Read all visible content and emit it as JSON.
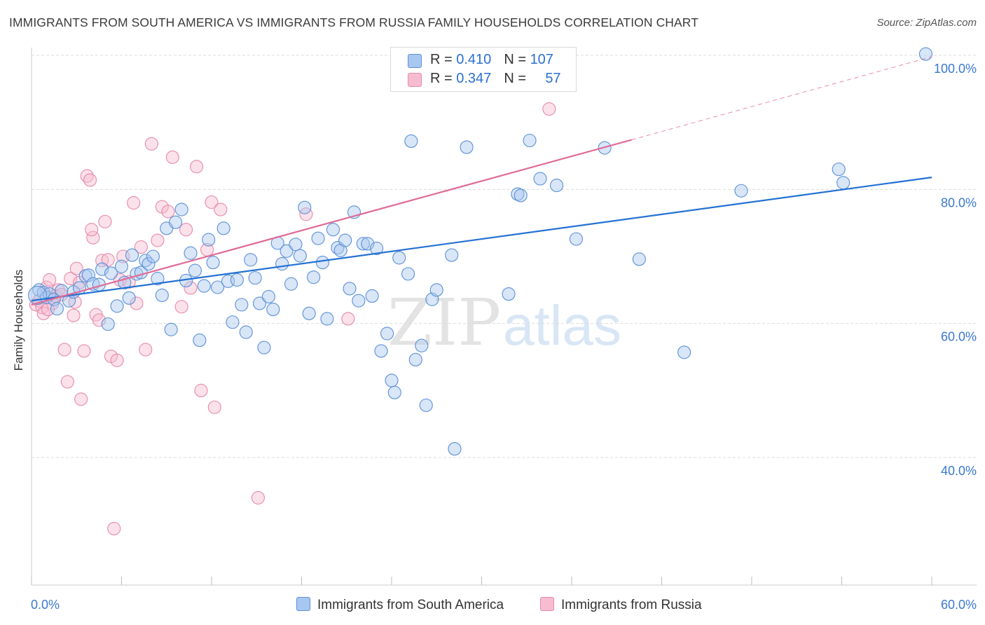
{
  "title": "IMMIGRANTS FROM SOUTH AMERICA VS IMMIGRANTS FROM RUSSIA FAMILY HOUSEHOLDS CORRELATION CHART",
  "source": "Source: ZipAtlas.com",
  "legend_top": [
    {
      "r_label": "R = ",
      "r_value": "0.410",
      "n_label": "N = ",
      "n_value": "107"
    },
    {
      "r_label": "R = ",
      "r_value": "0.347",
      "n_label": "N = ",
      "n_value": "57"
    }
  ],
  "colors": {
    "blue_fill": "#a8c7f0",
    "blue_stroke": "#5b8fd6",
    "blue_line": "#2471d3",
    "pink_fill": "#f7bcd0",
    "pink_stroke": "#e58aa8",
    "pink_line": "#e06b96",
    "axis_text": "#3a78d0",
    "grid": "#dcdcdc"
  },
  "chart_data": {
    "type": "scatter",
    "title": "IMMIGRANTS FROM SOUTH AMERICA VS IMMIGRANTS FROM RUSSIA FAMILY HOUSEHOLDS CORRELATION CHART",
    "xlabel": "",
    "ylabel": "Family Households",
    "xlim": [
      0,
      60
    ],
    "ylim": [
      20,
      102
    ],
    "x_tick_labels": [
      "0.0%",
      "60.0%"
    ],
    "y_tick_labels": [
      "40.0%",
      "60.0%",
      "80.0%",
      "100.0%"
    ],
    "y_ticks": [
      40,
      60,
      80,
      100
    ],
    "grid": true,
    "legend_position": "bottom",
    "series": [
      {
        "name": "Immigrants from South America",
        "r": 0.41,
        "n": 107,
        "trend": {
          "x": [
            0,
            60
          ],
          "y": [
            63.4,
            81.8
          ]
        },
        "points": [
          [
            0.5,
            65.0
          ],
          [
            0.8,
            64.6
          ],
          [
            1.0,
            63.9
          ],
          [
            1.2,
            64.4
          ],
          [
            1.5,
            63.6
          ],
          [
            1.7,
            62.2
          ],
          [
            2.0,
            64.9
          ],
          [
            2.5,
            63.4
          ],
          [
            2.8,
            64.7
          ],
          [
            3.2,
            65.3
          ],
          [
            3.6,
            67.1
          ],
          [
            3.8,
            67.2
          ],
          [
            4.1,
            65.9
          ],
          [
            4.5,
            65.8
          ],
          [
            4.7,
            68.1
          ],
          [
            5.1,
            59.9
          ],
          [
            5.3,
            67.5
          ],
          [
            5.7,
            62.6
          ],
          [
            6.0,
            68.5
          ],
          [
            6.2,
            66.1
          ],
          [
            6.5,
            63.8
          ],
          [
            6.7,
            70.2
          ],
          [
            7.0,
            67.4
          ],
          [
            7.3,
            67.6
          ],
          [
            7.6,
            69.4
          ],
          [
            7.8,
            68.9
          ],
          [
            8.1,
            70.0
          ],
          [
            8.4,
            66.7
          ],
          [
            8.7,
            64.2
          ],
          [
            9.0,
            74.2
          ],
          [
            9.3,
            59.1
          ],
          [
            9.6,
            75.1
          ],
          [
            10.0,
            77.0
          ],
          [
            10.3,
            66.4
          ],
          [
            10.6,
            70.5
          ],
          [
            10.9,
            67.9
          ],
          [
            11.2,
            57.5
          ],
          [
            11.5,
            65.6
          ],
          [
            11.8,
            72.5
          ],
          [
            12.1,
            69.1
          ],
          [
            12.4,
            65.4
          ],
          [
            12.8,
            74.2
          ],
          [
            13.1,
            66.3
          ],
          [
            13.4,
            60.2
          ],
          [
            13.7,
            66.5
          ],
          [
            14.0,
            62.8
          ],
          [
            14.3,
            58.7
          ],
          [
            14.6,
            69.5
          ],
          [
            14.9,
            66.8
          ],
          [
            15.2,
            63.0
          ],
          [
            15.5,
            56.4
          ],
          [
            15.8,
            64.0
          ],
          [
            16.1,
            62.1
          ],
          [
            16.4,
            72.0
          ],
          [
            16.7,
            68.9
          ],
          [
            17.0,
            70.8
          ],
          [
            17.3,
            65.9
          ],
          [
            17.6,
            71.8
          ],
          [
            17.9,
            70.1
          ],
          [
            18.2,
            77.3
          ],
          [
            18.5,
            61.5
          ],
          [
            18.8,
            66.9
          ],
          [
            19.1,
            72.7
          ],
          [
            19.4,
            69.1
          ],
          [
            19.7,
            60.7
          ],
          [
            20.1,
            74.0
          ],
          [
            20.4,
            71.3
          ],
          [
            20.6,
            70.9
          ],
          [
            20.9,
            72.4
          ],
          [
            21.2,
            65.2
          ],
          [
            21.5,
            76.6
          ],
          [
            21.8,
            63.4
          ],
          [
            22.1,
            71.9
          ],
          [
            22.4,
            71.9
          ],
          [
            22.7,
            64.1
          ],
          [
            23.0,
            71.2
          ],
          [
            23.3,
            55.9
          ],
          [
            23.7,
            58.5
          ],
          [
            24.0,
            51.5
          ],
          [
            24.2,
            49.7
          ],
          [
            24.5,
            69.8
          ],
          [
            25.1,
            67.4
          ],
          [
            25.3,
            87.2
          ],
          [
            25.6,
            54.6
          ],
          [
            26.0,
            56.7
          ],
          [
            26.3,
            47.8
          ],
          [
            26.7,
            63.6
          ],
          [
            27.0,
            65.0
          ],
          [
            28.0,
            70.2
          ],
          [
            28.2,
            41.3
          ],
          [
            29.0,
            86.3
          ],
          [
            31.8,
            64.4
          ],
          [
            32.4,
            79.3
          ],
          [
            32.6,
            79.1
          ],
          [
            33.2,
            87.3
          ],
          [
            33.9,
            81.6
          ],
          [
            35.0,
            80.6
          ],
          [
            36.3,
            72.6
          ],
          [
            38.2,
            86.2
          ],
          [
            40.5,
            69.6
          ],
          [
            43.5,
            55.7
          ],
          [
            47.3,
            79.8
          ],
          [
            53.8,
            83.0
          ],
          [
            54.1,
            81.0
          ],
          [
            59.6,
            100.2
          ]
        ]
      },
      {
        "name": "Immigrants from Russia",
        "r": 0.347,
        "n": 57,
        "trend": {
          "x": [
            0,
            40
          ],
          "y": [
            62.8,
            87.4
          ]
        },
        "trend_dashed": {
          "x": [
            40,
            60
          ],
          "y": [
            87.4,
            99.8
          ]
        },
        "points": [
          [
            0.3,
            62.8
          ],
          [
            0.5,
            63.4
          ],
          [
            0.7,
            62.4
          ],
          [
            0.8,
            61.5
          ],
          [
            1.0,
            65.4
          ],
          [
            1.2,
            66.5
          ],
          [
            1.4,
            63.0
          ],
          [
            1.6,
            64.1
          ],
          [
            1.8,
            65.0
          ],
          [
            2.0,
            64.3
          ],
          [
            2.2,
            56.1
          ],
          [
            2.4,
            51.3
          ],
          [
            2.6,
            66.7
          ],
          [
            2.8,
            61.2
          ],
          [
            3.0,
            68.2
          ],
          [
            3.2,
            66.1
          ],
          [
            3.3,
            48.7
          ],
          [
            3.5,
            55.9
          ],
          [
            3.7,
            82.0
          ],
          [
            3.9,
            81.4
          ],
          [
            4.1,
            72.8
          ],
          [
            4.3,
            61.3
          ],
          [
            4.5,
            60.5
          ],
          [
            4.7,
            69.4
          ],
          [
            4.9,
            75.2
          ],
          [
            5.1,
            69.5
          ],
          [
            5.3,
            55.1
          ],
          [
            5.5,
            29.4
          ],
          [
            5.7,
            54.5
          ],
          [
            5.9,
            66.5
          ],
          [
            6.1,
            70.0
          ],
          [
            6.5,
            66.2
          ],
          [
            6.8,
            78.0
          ],
          [
            7.0,
            63.0
          ],
          [
            7.3,
            71.4
          ],
          [
            7.6,
            56.1
          ],
          [
            8.0,
            86.8
          ],
          [
            8.4,
            72.4
          ],
          [
            8.7,
            77.4
          ],
          [
            9.1,
            76.7
          ],
          [
            9.4,
            84.8
          ],
          [
            10.0,
            62.5
          ],
          [
            10.3,
            74.0
          ],
          [
            10.6,
            65.3
          ],
          [
            11.0,
            83.4
          ],
          [
            11.3,
            50.0
          ],
          [
            11.7,
            71.0
          ],
          [
            12.0,
            78.1
          ],
          [
            12.2,
            47.5
          ],
          [
            12.6,
            77.0
          ],
          [
            15.1,
            34.0
          ],
          [
            18.3,
            76.3
          ],
          [
            21.1,
            60.7
          ],
          [
            34.5,
            92.0
          ],
          [
            4.0,
            74.0
          ],
          [
            2.9,
            63.2
          ],
          [
            1.1,
            62.1
          ]
        ]
      }
    ]
  },
  "watermark": {
    "zip": "ZIP",
    "atlas": "atlas"
  }
}
